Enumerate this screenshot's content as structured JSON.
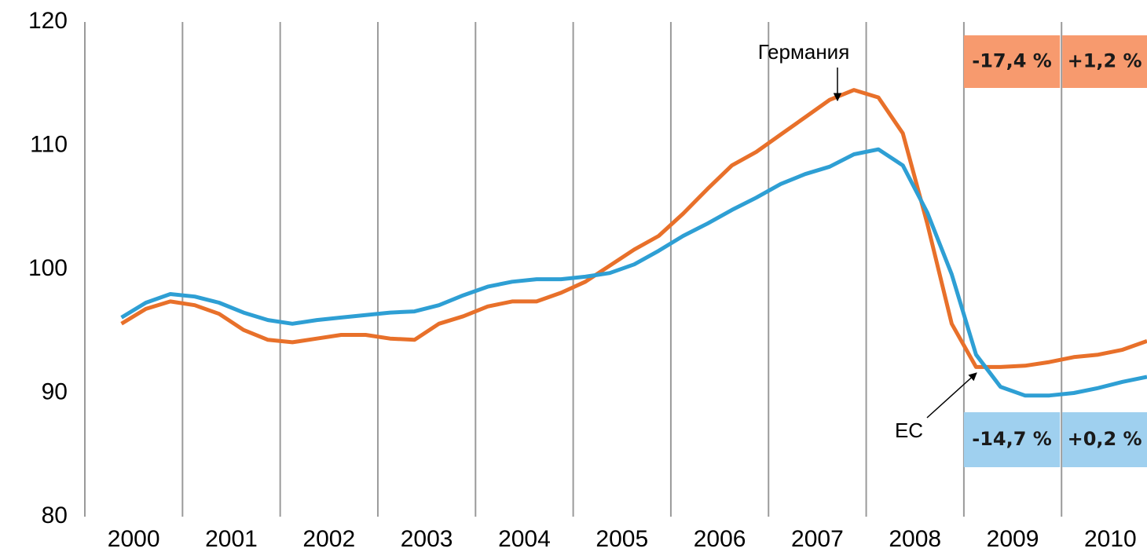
{
  "chart_data": {
    "type": "line",
    "x": [
      2000.375,
      2000.625,
      2000.875,
      2001.125,
      2001.375,
      2001.625,
      2001.875,
      2002.125,
      2002.375,
      2002.625,
      2002.875,
      2003.125,
      2003.375,
      2003.625,
      2003.875,
      2004.125,
      2004.375,
      2004.625,
      2004.875,
      2005.125,
      2005.375,
      2005.625,
      2005.875,
      2006.125,
      2006.375,
      2006.625,
      2006.875,
      2007.125,
      2007.375,
      2007.625,
      2007.875,
      2008.125,
      2008.375,
      2008.625,
      2008.875,
      2009.125,
      2009.375,
      2009.625,
      2009.875,
      2010.125,
      2010.375,
      2010.625,
      2010.875
    ],
    "series": [
      {
        "name": "Германия",
        "color": "#e8702a",
        "values": [
          95.6,
          96.8,
          97.4,
          97.1,
          96.4,
          95.1,
          94.3,
          94.1,
          94.4,
          94.7,
          94.7,
          94.4,
          94.3,
          95.6,
          96.2,
          97.0,
          97.4,
          97.4,
          98.1,
          99.0,
          100.3,
          101.6,
          102.7,
          104.5,
          106.5,
          108.4,
          109.5,
          110.9,
          112.3,
          113.7,
          114.5,
          113.9,
          111.0,
          103.7,
          95.6,
          92.1,
          92.1,
          92.2,
          92.5,
          92.9,
          93.1,
          93.5,
          94.2
        ]
      },
      {
        "name": "ЕС",
        "color": "#2e9fd4",
        "values": [
          96.1,
          97.3,
          98.0,
          97.8,
          97.3,
          96.5,
          95.9,
          95.6,
          95.9,
          96.1,
          96.3,
          96.5,
          96.6,
          97.1,
          97.9,
          98.6,
          99.0,
          99.2,
          99.2,
          99.4,
          99.7,
          100.4,
          101.5,
          102.7,
          103.7,
          104.8,
          105.8,
          106.9,
          107.7,
          108.3,
          109.3,
          109.7,
          108.4,
          104.6,
          99.6,
          93.1,
          90.5,
          89.8,
          89.8,
          90.0,
          90.4,
          90.9,
          91.3
        ]
      }
    ],
    "xlim": [
      2000,
      2010.875
    ],
    "xticks": [
      2000,
      2001,
      2002,
      2003,
      2004,
      2005,
      2006,
      2007,
      2008,
      2009,
      2010
    ],
    "ylim": [
      80,
      120
    ],
    "yticks": [
      80,
      90,
      100,
      110,
      120
    ],
    "grid": true,
    "change_boxes": [
      {
        "color": "#f79a6e",
        "labels": [
          "-17,4 %",
          "+1,2 %"
        ]
      },
      {
        "color": "#9fd0ef",
        "labels": [
          "-14,7 %",
          "+0,2 %"
        ]
      }
    ]
  }
}
